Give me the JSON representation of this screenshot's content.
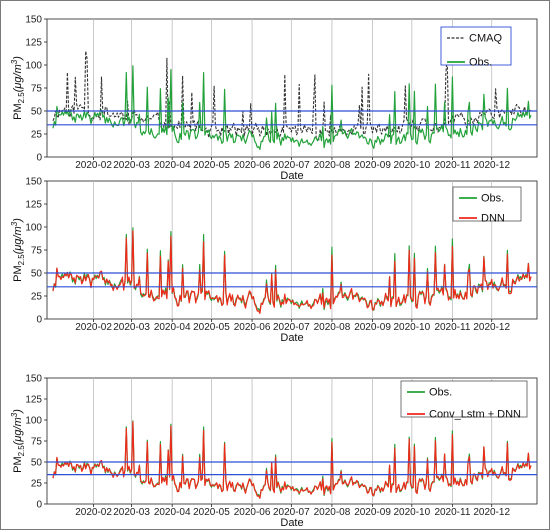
{
  "chart_data": [
    {
      "type": "line",
      "xlabel": "Date",
      "ylabel": "PM2.5(μg/m3)",
      "ylabel_parts": {
        "main": "PM",
        "sub": "2.5",
        "open": "(μg/m",
        "sup": "3",
        "close": ")"
      },
      "ylim": [
        0,
        150
      ],
      "yticks": [
        "0",
        "25",
        "50",
        "75",
        "100",
        "125",
        "150"
      ],
      "xticks": [
        "2020-02",
        "2020-03",
        "2020-04",
        "2020-05",
        "2020-06",
        "2020-07",
        "2020-08",
        "2020-09",
        "2020-10",
        "2020-11",
        "2020-12"
      ],
      "reference_lines": [
        35,
        50
      ],
      "reference_color": "#2f4fd6",
      "legend_position": "top-right",
      "grid": "vertical",
      "series": [
        {
          "name": "CMAQ",
          "color": "#333333",
          "style": "dashed",
          "seed": 11,
          "level": 36,
          "spike": 1.35
        },
        {
          "name": "Obs.",
          "color": "#23a23a",
          "style": "solid",
          "seed": 7,
          "level": 28,
          "spike": 1.0
        }
      ]
    },
    {
      "type": "line",
      "xlabel": "Date",
      "ylabel": "PM2.5(μg/m3)",
      "ylabel_parts": {
        "main": "PM",
        "sub": "2.5",
        "open": "(μg/m",
        "sup": "3",
        "close": ")"
      },
      "ylim": [
        0,
        150
      ],
      "yticks": [
        "0",
        "25",
        "50",
        "75",
        "100",
        "125",
        "150"
      ],
      "xticks": [
        "2020-02",
        "2020-03",
        "2020-04",
        "2020-05",
        "2020-06",
        "2020-07",
        "2020-08",
        "2020-09",
        "2020-10",
        "2020-11",
        "2020-12"
      ],
      "reference_lines": [
        35,
        50
      ],
      "reference_color": "#2f4fd6",
      "legend_position": "top-right",
      "grid": "vertical",
      "series": [
        {
          "name": "Obs.",
          "color": "#23a23a",
          "style": "solid",
          "seed": 7,
          "level": 28,
          "spike": 1.0
        },
        {
          "name": "DNN",
          "color": "#ee2a1b",
          "style": "solid",
          "seed": 7,
          "level": 28,
          "spike": 0.9,
          "noise": 3
        }
      ]
    },
    {
      "type": "line",
      "xlabel": "Date",
      "ylabel": "PM2.5(μg/m3)",
      "ylabel_parts": {
        "main": "PM",
        "sub": "2.5",
        "open": "(μg/m",
        "sup": "3",
        "close": ")"
      },
      "ylim": [
        0,
        150
      ],
      "yticks": [
        "0",
        "25",
        "50",
        "75",
        "100",
        "125",
        "150"
      ],
      "xticks": [
        "2020-02",
        "2020-03",
        "2020-04",
        "2020-05",
        "2020-06",
        "2020-07",
        "2020-08",
        "2020-09",
        "2020-10",
        "2020-11",
        "2020-12"
      ],
      "reference_lines": [
        35,
        50
      ],
      "reference_color": "#2f4fd6",
      "legend_position": "top-right",
      "grid": "vertical",
      "series": [
        {
          "name": "Obs.",
          "color": "#23a23a",
          "style": "solid",
          "seed": 7,
          "level": 28,
          "spike": 1.0
        },
        {
          "name": "Conv_Lstm + DNN",
          "color": "#ee2a1b",
          "style": "solid",
          "seed": 7,
          "level": 28,
          "spike": 0.95,
          "noise": 2
        }
      ]
    }
  ]
}
